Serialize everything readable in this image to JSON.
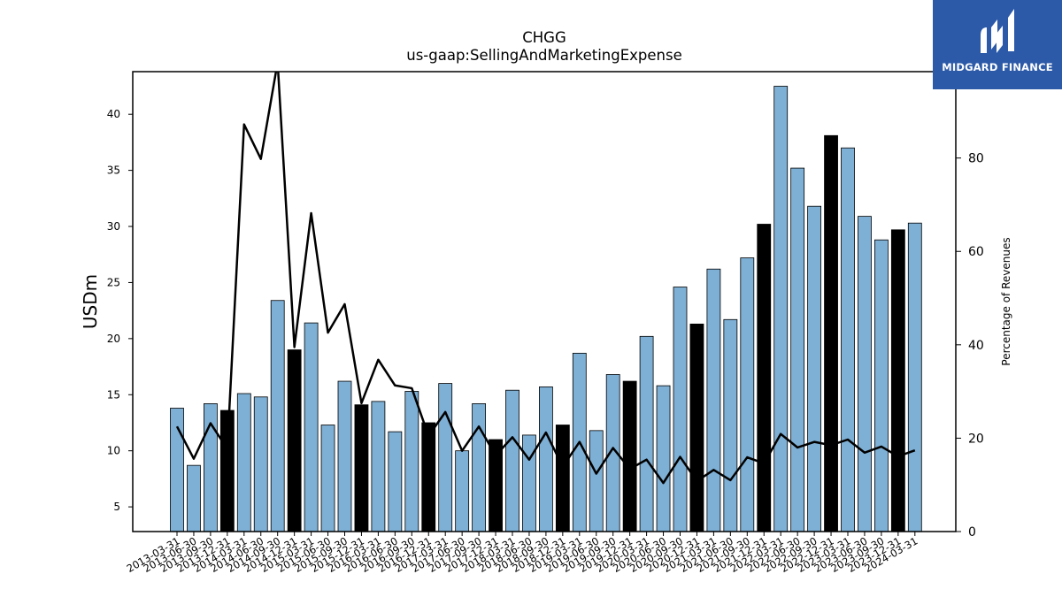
{
  "chart_data": {
    "type": "bar",
    "title": "CHGG",
    "subtitle": "us-gaap:SellingAndMarketingExpense",
    "ylabel": "USDm",
    "y2label": "Percentage of Revenues",
    "ylim": [
      2.8,
      43.8
    ],
    "y2lim": [
      0,
      98.5
    ],
    "yticks": [
      5,
      10,
      15,
      20,
      25,
      30,
      35,
      40
    ],
    "y2ticks": [
      0,
      20,
      40,
      60,
      80
    ],
    "categories": [
      "2013-03-31",
      "2013-06-30",
      "2013-09-30",
      "2013-12-31",
      "2014-03-31",
      "2014-06-30",
      "2014-09-30",
      "2014-12-31",
      "2015-03-31",
      "2015-06-30",
      "2015-09-30",
      "2015-12-31",
      "2016-03-31",
      "2016-06-30",
      "2016-09-30",
      "2016-12-31",
      "2017-03-31",
      "2017-06-30",
      "2017-09-30",
      "2017-12-31",
      "2018-03-31",
      "2018-06-30",
      "2018-09-30",
      "2018-12-31",
      "2019-03-31",
      "2019-06-30",
      "2019-09-30",
      "2019-12-31",
      "2020-03-31",
      "2020-06-30",
      "2020-09-30",
      "2020-12-31",
      "2021-03-31",
      "2021-06-30",
      "2021-09-30",
      "2021-12-31",
      "2022-03-31",
      "2022-06-30",
      "2022-09-30",
      "2022-12-31",
      "2023-03-31",
      "2023-06-30",
      "2023-09-30",
      "2023-12-31",
      "2024-03-31"
    ],
    "series": [
      {
        "kind": "bar",
        "axis": "left",
        "values": [
          13.8,
          8.7,
          14.2,
          13.6,
          15.1,
          14.8,
          23.4,
          19.0,
          21.4,
          12.3,
          16.2,
          14.1,
          14.4,
          11.7,
          15.3,
          12.5,
          16.0,
          10.0,
          14.2,
          11.0,
          15.4,
          11.4,
          15.7,
          12.3,
          18.7,
          11.8,
          16.8,
          16.2,
          20.2,
          15.8,
          24.6,
          21.3,
          26.2,
          21.7,
          27.2,
          30.2,
          42.5,
          35.2,
          31.8,
          38.1,
          37.0,
          30.9,
          28.8,
          29.7,
          30.3
        ]
      },
      {
        "kind": "line",
        "axis": "right",
        "values": [
          22.5,
          15.6,
          23.2,
          17.7,
          87.2,
          79.8,
          100.5,
          39.5,
          68.2,
          42.6,
          48.7,
          27.5,
          36.8,
          31.3,
          30.7,
          20.5,
          25.6,
          17.3,
          22.5,
          16.3,
          20.2,
          15.4,
          21.2,
          13.9,
          19.2,
          12.4,
          17.9,
          13.4,
          15.4,
          10.4,
          16.0,
          10.8,
          13.2,
          11.0,
          15.9,
          14.6,
          20.9,
          18.0,
          19.2,
          18.5,
          19.7,
          16.9,
          18.2,
          16.1,
          17.4
        ]
      }
    ],
    "colors": {
      "bar": "#7eafd4",
      "bar_year_end": "#000000",
      "line": "#000000",
      "logo_bg": "#2c5aa8"
    }
  },
  "logo": {
    "icon": "midgard-logo-icon",
    "text": "MIDGARD FINANCE"
  }
}
